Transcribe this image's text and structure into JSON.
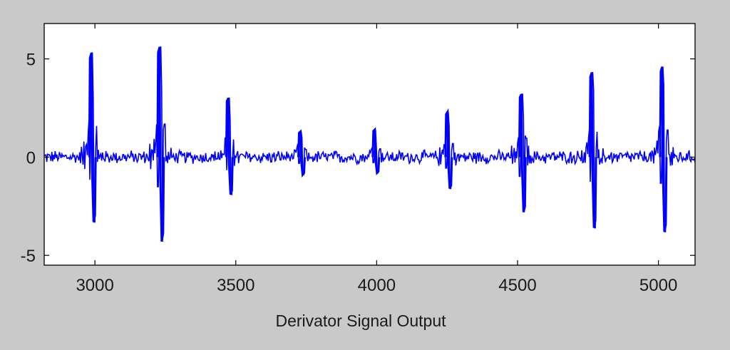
{
  "colors": {
    "figure_background": "#c9c9c9",
    "axes_background": "#ffffff",
    "signal_line": "#0000ff",
    "axes_frame": "#000000"
  },
  "chart_data": {
    "type": "line",
    "title": "",
    "xlabel": "Derivator Signal Output",
    "ylabel": "",
    "xlim": [
      2820,
      5130
    ],
    "ylim": [
      -5.5,
      6.8
    ],
    "xticks": [
      3000,
      3500,
      4000,
      4500,
      5000
    ],
    "yticks": [
      -5,
      0,
      5
    ],
    "grid": false,
    "legend": null,
    "noise_amplitude": 0.28,
    "series": [
      {
        "baseline": 0,
        "beats": [
          {
            "x": 2990,
            "peak": 5.3,
            "trough": -3.3
          },
          {
            "x": 3232,
            "peak": 5.6,
            "trough": -4.3
          },
          {
            "x": 3476,
            "peak": 3.0,
            "trough": -1.9
          },
          {
            "x": 3732,
            "peak": 1.3,
            "trough": -0.9
          },
          {
            "x": 3996,
            "peak": 1.4,
            "trough": -0.8
          },
          {
            "x": 4254,
            "peak": 2.3,
            "trough": -1.6
          },
          {
            "x": 4516,
            "peak": 3.2,
            "trough": -2.8
          },
          {
            "x": 4766,
            "peak": 4.3,
            "trough": -3.6
          },
          {
            "x": 5016,
            "peak": 4.6,
            "trough": -3.8
          }
        ]
      }
    ]
  }
}
